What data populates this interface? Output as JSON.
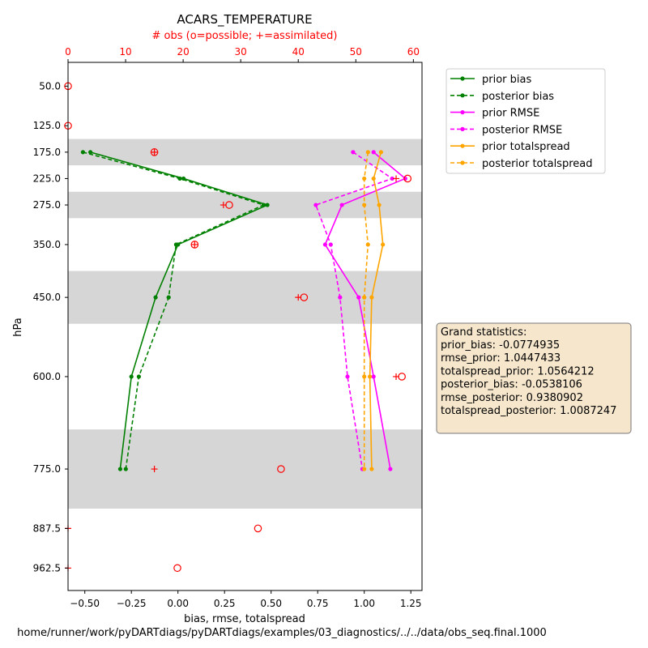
{
  "chart_data": {
    "type": "line",
    "title": "ACARS_TEMPERATURE",
    "top_axis_label": "# obs (o=possible; +=assimilated)",
    "xlabel": "bias, rmse, totalspread",
    "ylabel": "hPa",
    "footer": "home/runner/work/pyDARTdiags/pyDARTdiags/examples/03_diagnostics/../../data/obs_seq.final.1000",
    "xlim": [
      -0.59,
      1.31
    ],
    "x_ticks": [
      "−0.50",
      "−0.25",
      "0.00",
      "0.25",
      "0.50",
      "0.75",
      "1.00",
      "1.25"
    ],
    "x_tick_values": [
      -0.5,
      -0.25,
      0,
      0.25,
      0.5,
      0.75,
      1.0,
      1.25
    ],
    "top_xlim": [
      0,
      61.5
    ],
    "top_ticks": [
      "0",
      "10",
      "20",
      "30",
      "40",
      "50",
      "60"
    ],
    "top_tick_values": [
      0,
      10,
      20,
      30,
      40,
      50,
      60
    ],
    "y_levels": [
      "50.0",
      "125.0",
      "175.0",
      "225.0",
      "275.0",
      "350.0",
      "450.0",
      "600.0",
      "775.0",
      "887.5",
      "962.5"
    ],
    "y_level_values": [
      50,
      125,
      175,
      225,
      275,
      350,
      450,
      600,
      775,
      887.5,
      962.5
    ],
    "ylim": [
      5,
      1005
    ],
    "shaded_bands": [
      [
        150,
        200
      ],
      [
        250,
        300
      ],
      [
        400,
        500
      ],
      [
        700,
        850
      ]
    ],
    "grid": false,
    "legend_position": "outside-top-right",
    "series": [
      {
        "name": "prior bias",
        "color": "#008000",
        "style": "solid",
        "levels": [
          175,
          225,
          275,
          350,
          450,
          600,
          775
        ],
        "values": [
          -0.47,
          0.03,
          0.48,
          0.0,
          -0.12,
          -0.25,
          -0.31
        ]
      },
      {
        "name": "posterior bias",
        "color": "#008000",
        "style": "dashed",
        "levels": [
          175,
          225,
          275,
          350,
          450,
          600,
          775
        ],
        "values": [
          -0.51,
          0.01,
          0.46,
          -0.01,
          -0.05,
          -0.21,
          -0.28
        ]
      },
      {
        "name": "prior RMSE",
        "color": "#ff00ff",
        "style": "solid",
        "levels": [
          175,
          225,
          275,
          350,
          450,
          600,
          775
        ],
        "values": [
          1.05,
          1.22,
          0.88,
          0.79,
          0.97,
          1.05,
          1.14
        ]
      },
      {
        "name": "posterior RMSE",
        "color": "#ff00ff",
        "style": "dashed",
        "levels": [
          175,
          225,
          275,
          350,
          450,
          600,
          775
        ],
        "values": [
          0.94,
          1.15,
          0.74,
          0.82,
          0.87,
          0.91,
          0.99
        ]
      },
      {
        "name": "prior totalspread",
        "color": "#ffa500",
        "style": "solid",
        "levels": [
          175,
          225,
          275,
          350,
          450,
          600,
          775
        ],
        "values": [
          1.09,
          1.05,
          1.08,
          1.1,
          1.04,
          1.03,
          1.04
        ]
      },
      {
        "name": "posterior totalspread",
        "color": "#ffa500",
        "style": "dashed",
        "levels": [
          175,
          225,
          275,
          350,
          450,
          600,
          775
        ],
        "values": [
          1.02,
          1.0,
          1.0,
          1.02,
          1.0,
          1.0,
          1.0
        ]
      }
    ],
    "obs_possible": {
      "marker": "o",
      "color": "#ff0000",
      "levels": [
        50,
        125,
        175,
        225,
        275,
        350,
        450,
        600,
        775,
        887.5,
        962.5
      ],
      "counts": [
        0,
        0,
        15,
        59,
        28,
        22,
        41,
        58,
        37,
        33,
        19
      ]
    },
    "obs_assimilated": {
      "marker": "+",
      "color": "#ff0000",
      "levels": [
        175,
        225,
        275,
        350,
        450,
        600,
        775,
        887.5,
        962.5
      ],
      "counts": [
        15,
        57,
        27,
        22,
        40,
        57,
        15,
        0,
        0
      ]
    },
    "grand_statistics": {
      "title": "Grand statistics:",
      "lines": [
        "prior_bias: -0.0774935",
        "rmse_prior: 1.0447433",
        "totalspread_prior: 1.0564212",
        "posterior_bias: -0.0538106",
        "rmse_posterior: 0.9380902",
        "totalspread_posterior: 1.0087247"
      ],
      "background": "#f5e6cc"
    }
  }
}
